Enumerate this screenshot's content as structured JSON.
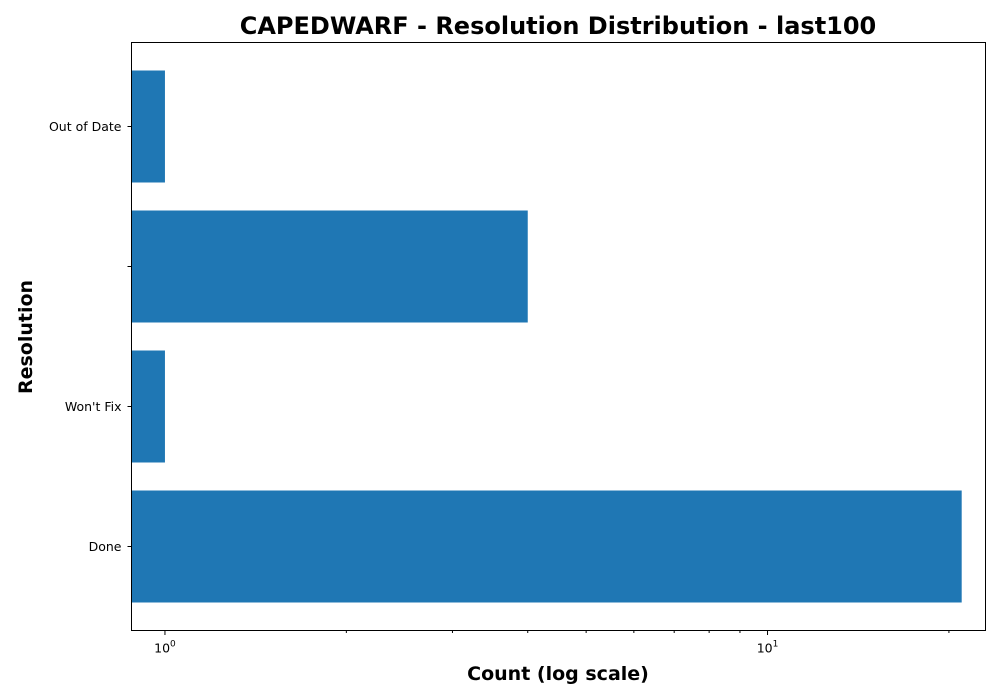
{
  "chart_data": {
    "type": "bar",
    "orientation": "horizontal",
    "title": "CAPEDWARF - Resolution Distribution - last100",
    "xlabel": "Count (log scale)",
    "ylabel": "Resolution",
    "x_scale": "log",
    "xlim": [
      0.88,
      23
    ],
    "categories": [
      "Done",
      "Won't Fix",
      "",
      "Out of Date"
    ],
    "values": [
      21,
      1,
      4,
      1
    ],
    "x_ticks": [
      {
        "value": 1,
        "base": "10",
        "exponent": "0"
      },
      {
        "value": 10,
        "base": "10",
        "exponent": "1"
      }
    ],
    "x_minor_ticks": [
      2,
      3,
      4,
      5,
      6,
      7,
      8,
      9,
      20
    ],
    "bar_color": "#1f77b4",
    "grid": false,
    "legend": "none"
  }
}
